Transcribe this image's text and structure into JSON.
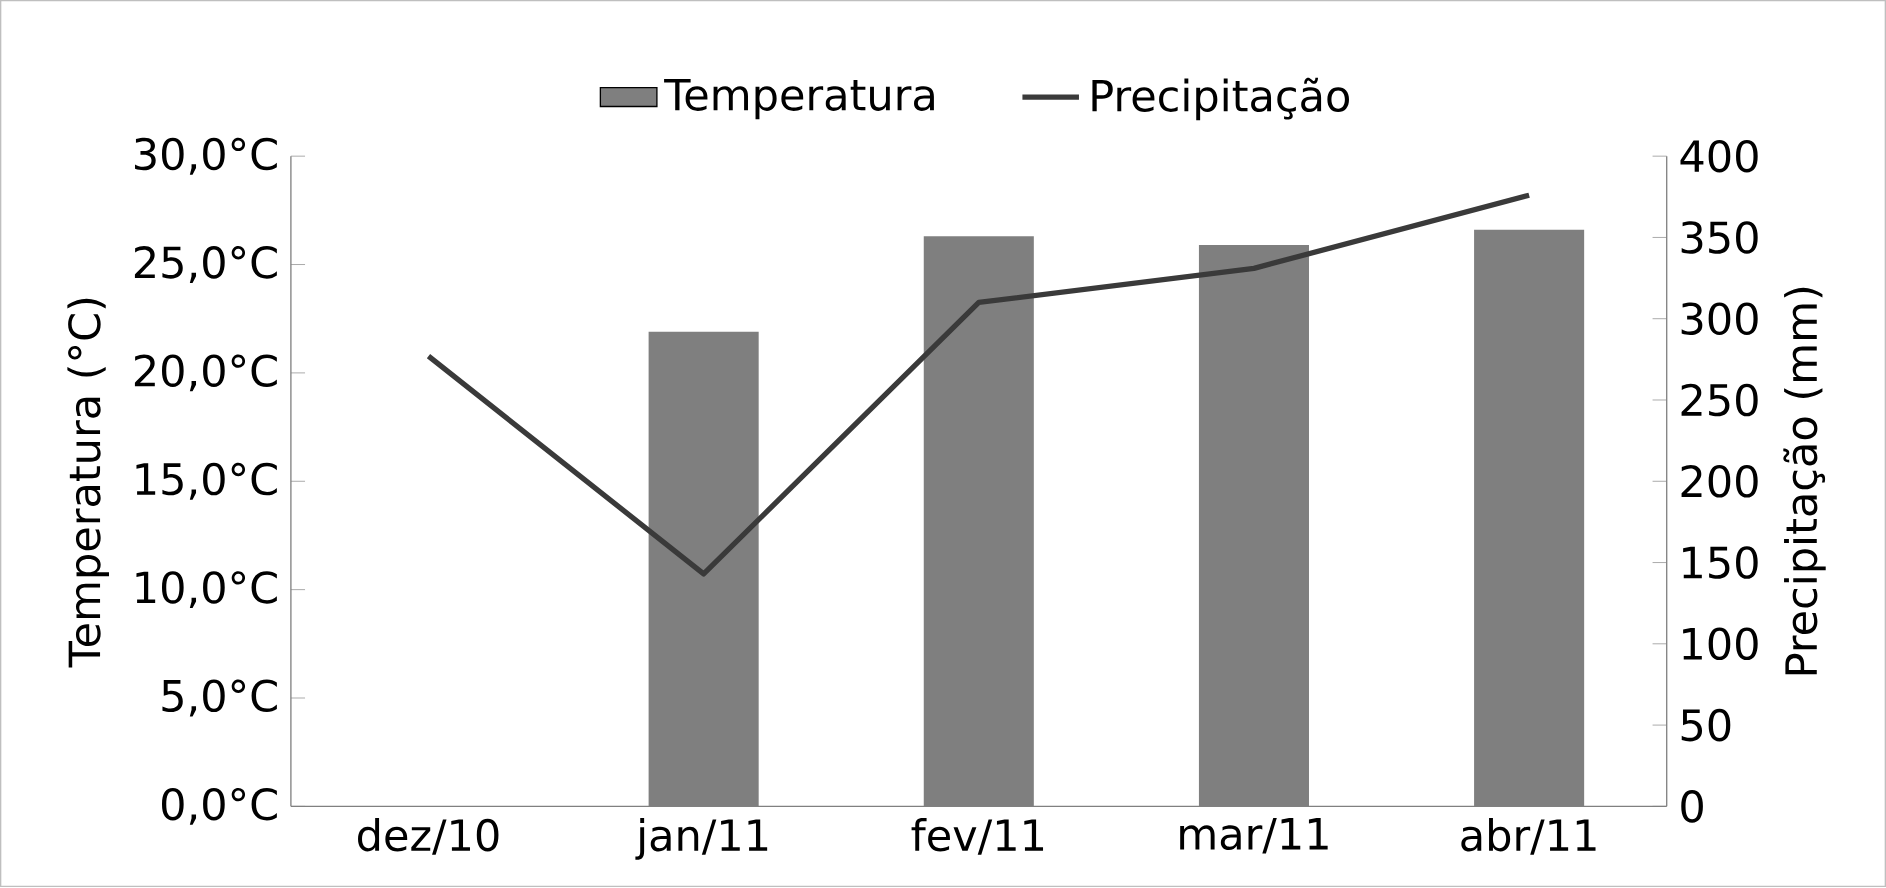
{
  "chart_data": {
    "type": "bar",
    "categories": [
      "dez/10",
      "jan/11",
      "fev/11",
      "mar/11",
      "abr/11"
    ],
    "series": [
      {
        "name": "Temperatura",
        "color": "#7f7f7f",
        "values": [
          null,
          21.9,
          26.3,
          25.9,
          26.6
        ]
      },
      {
        "name": "Precipitação",
        "type": "line",
        "axis": "y2",
        "color": "#3a3a3a",
        "values": [
          277,
          143,
          310,
          331,
          376
        ]
      }
    ],
    "ylabel": "Temperatura (°C)",
    "y2label": "Precipitação (mm)",
    "ylim": [
      0,
      30
    ],
    "yticks": [
      {
        "value": 0,
        "label": "0,0°C"
      },
      {
        "value": 5,
        "label": "5,0°C"
      },
      {
        "value": 10,
        "label": "10,0°C"
      },
      {
        "value": 15,
        "label": "15,0°C"
      },
      {
        "value": 20,
        "label": "20,0°C"
      },
      {
        "value": 25,
        "label": "25,0°C"
      },
      {
        "value": 30,
        "label": "30,0°C"
      }
    ],
    "y2lim": [
      0,
      400
    ],
    "y2ticks": [
      0,
      50,
      100,
      150,
      200,
      250,
      300,
      350,
      400
    ],
    "legend": "top",
    "marker": "none"
  }
}
